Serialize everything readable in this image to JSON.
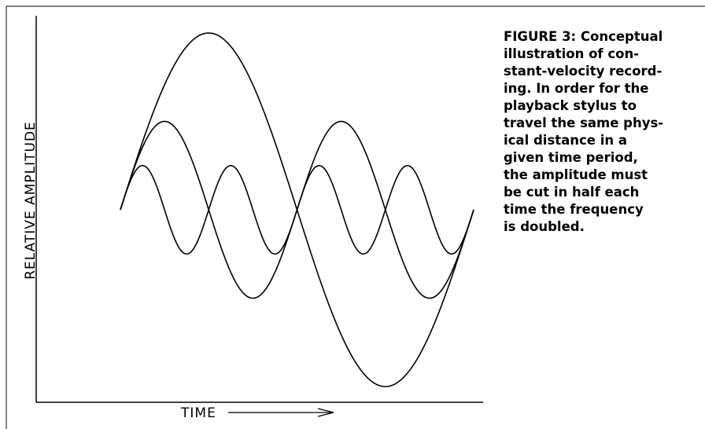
{
  "figure": {
    "y_axis_label": "RELATIVE AMPLITUDE",
    "x_axis_label": "TIME",
    "caption_lines": [
      "FIGURE 3: Conceptual",
      "illustration of con-",
      "stant-velocity record-",
      "ing. In order for the",
      "playback stylus to",
      "travel the same phys-",
      "ical distance in a",
      "given time period,",
      "the amplitude must",
      "be cut in half each",
      "time the frequency",
      "is doubled."
    ]
  }
}
